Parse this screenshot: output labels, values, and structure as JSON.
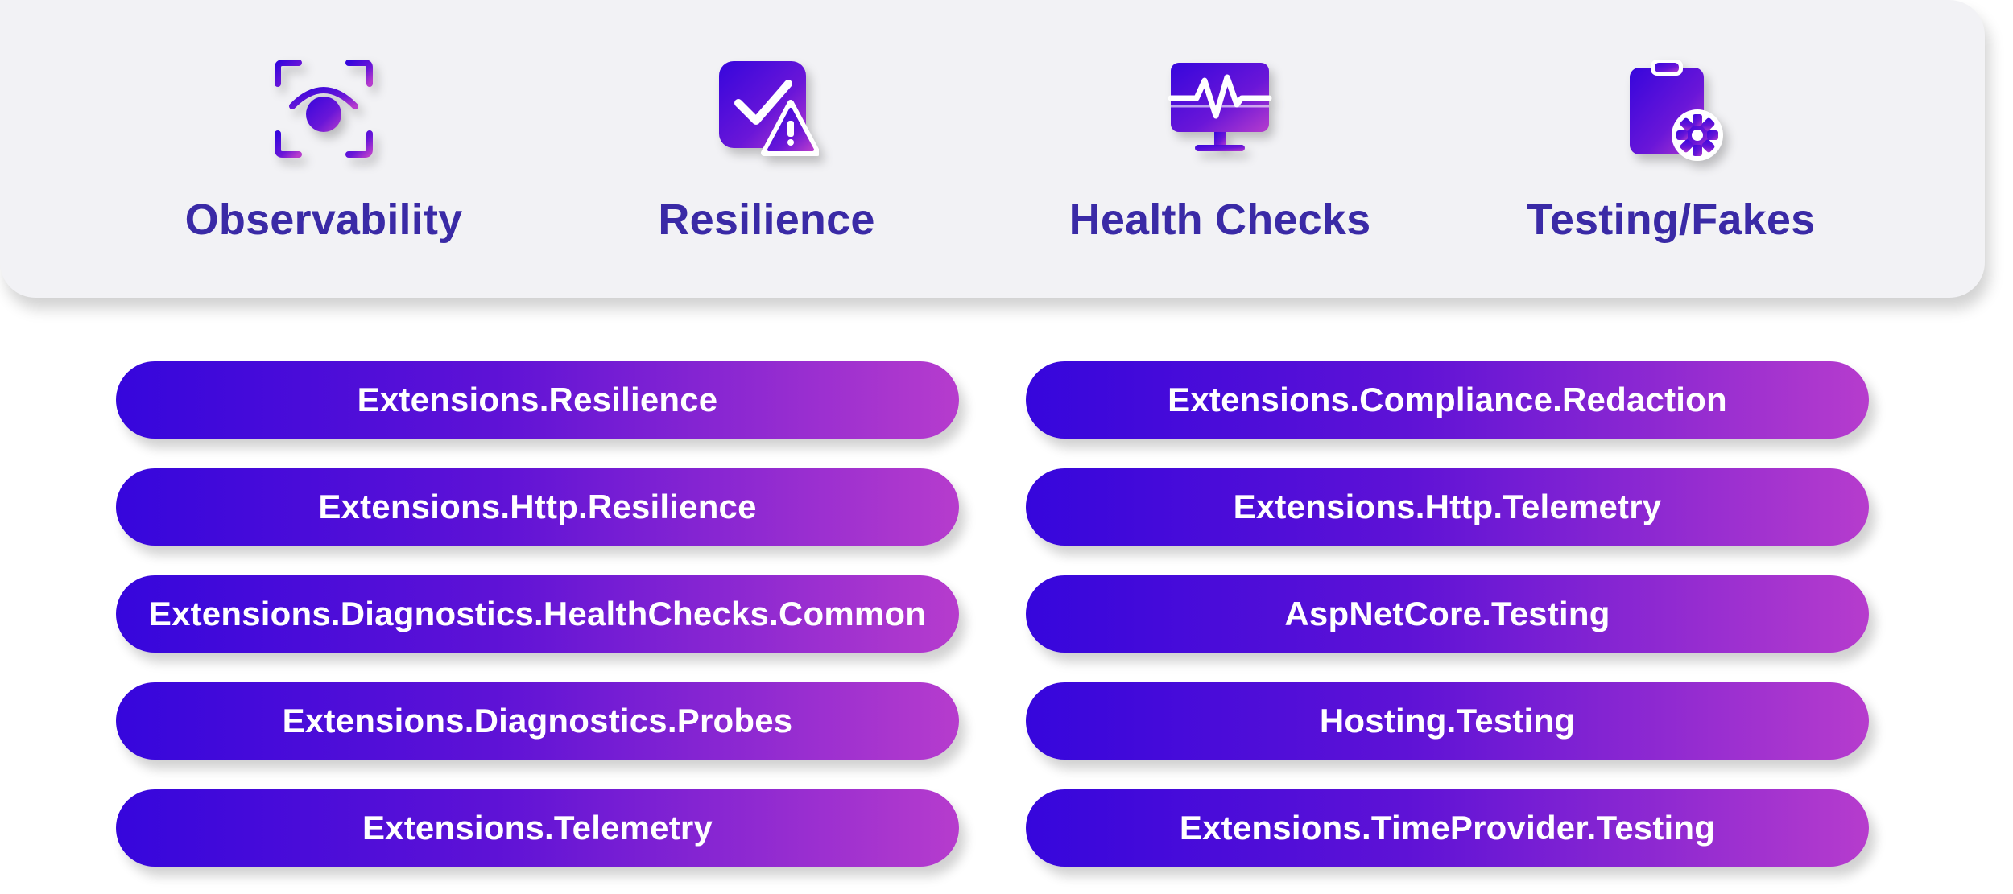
{
  "categories": [
    {
      "label": "Observability",
      "icon": "eye-focus-icon"
    },
    {
      "label": "Resilience",
      "icon": "checkbox-warning-icon"
    },
    {
      "label": "Health Checks",
      "icon": "heartbeat-monitor-icon"
    },
    {
      "label": "Testing/Fakes",
      "icon": "clipboard-gear-icon"
    }
  ],
  "colors": {
    "gradient_start": "#3606dc",
    "gradient_end": "#b63ccd",
    "label_text": "#3a2aa6",
    "panel_background": "#f2f2f5"
  },
  "packages": {
    "left": [
      "Extensions.Resilience",
      "Extensions.Http.Resilience",
      "Extensions.Diagnostics.HealthChecks.Common",
      "Extensions.Diagnostics.Probes",
      "Extensions.Telemetry"
    ],
    "right": [
      "Extensions.Compliance.Redaction",
      "Extensions.Http.Telemetry",
      "AspNetCore.Testing",
      "Hosting.Testing",
      "Extensions.TimeProvider.Testing"
    ]
  }
}
